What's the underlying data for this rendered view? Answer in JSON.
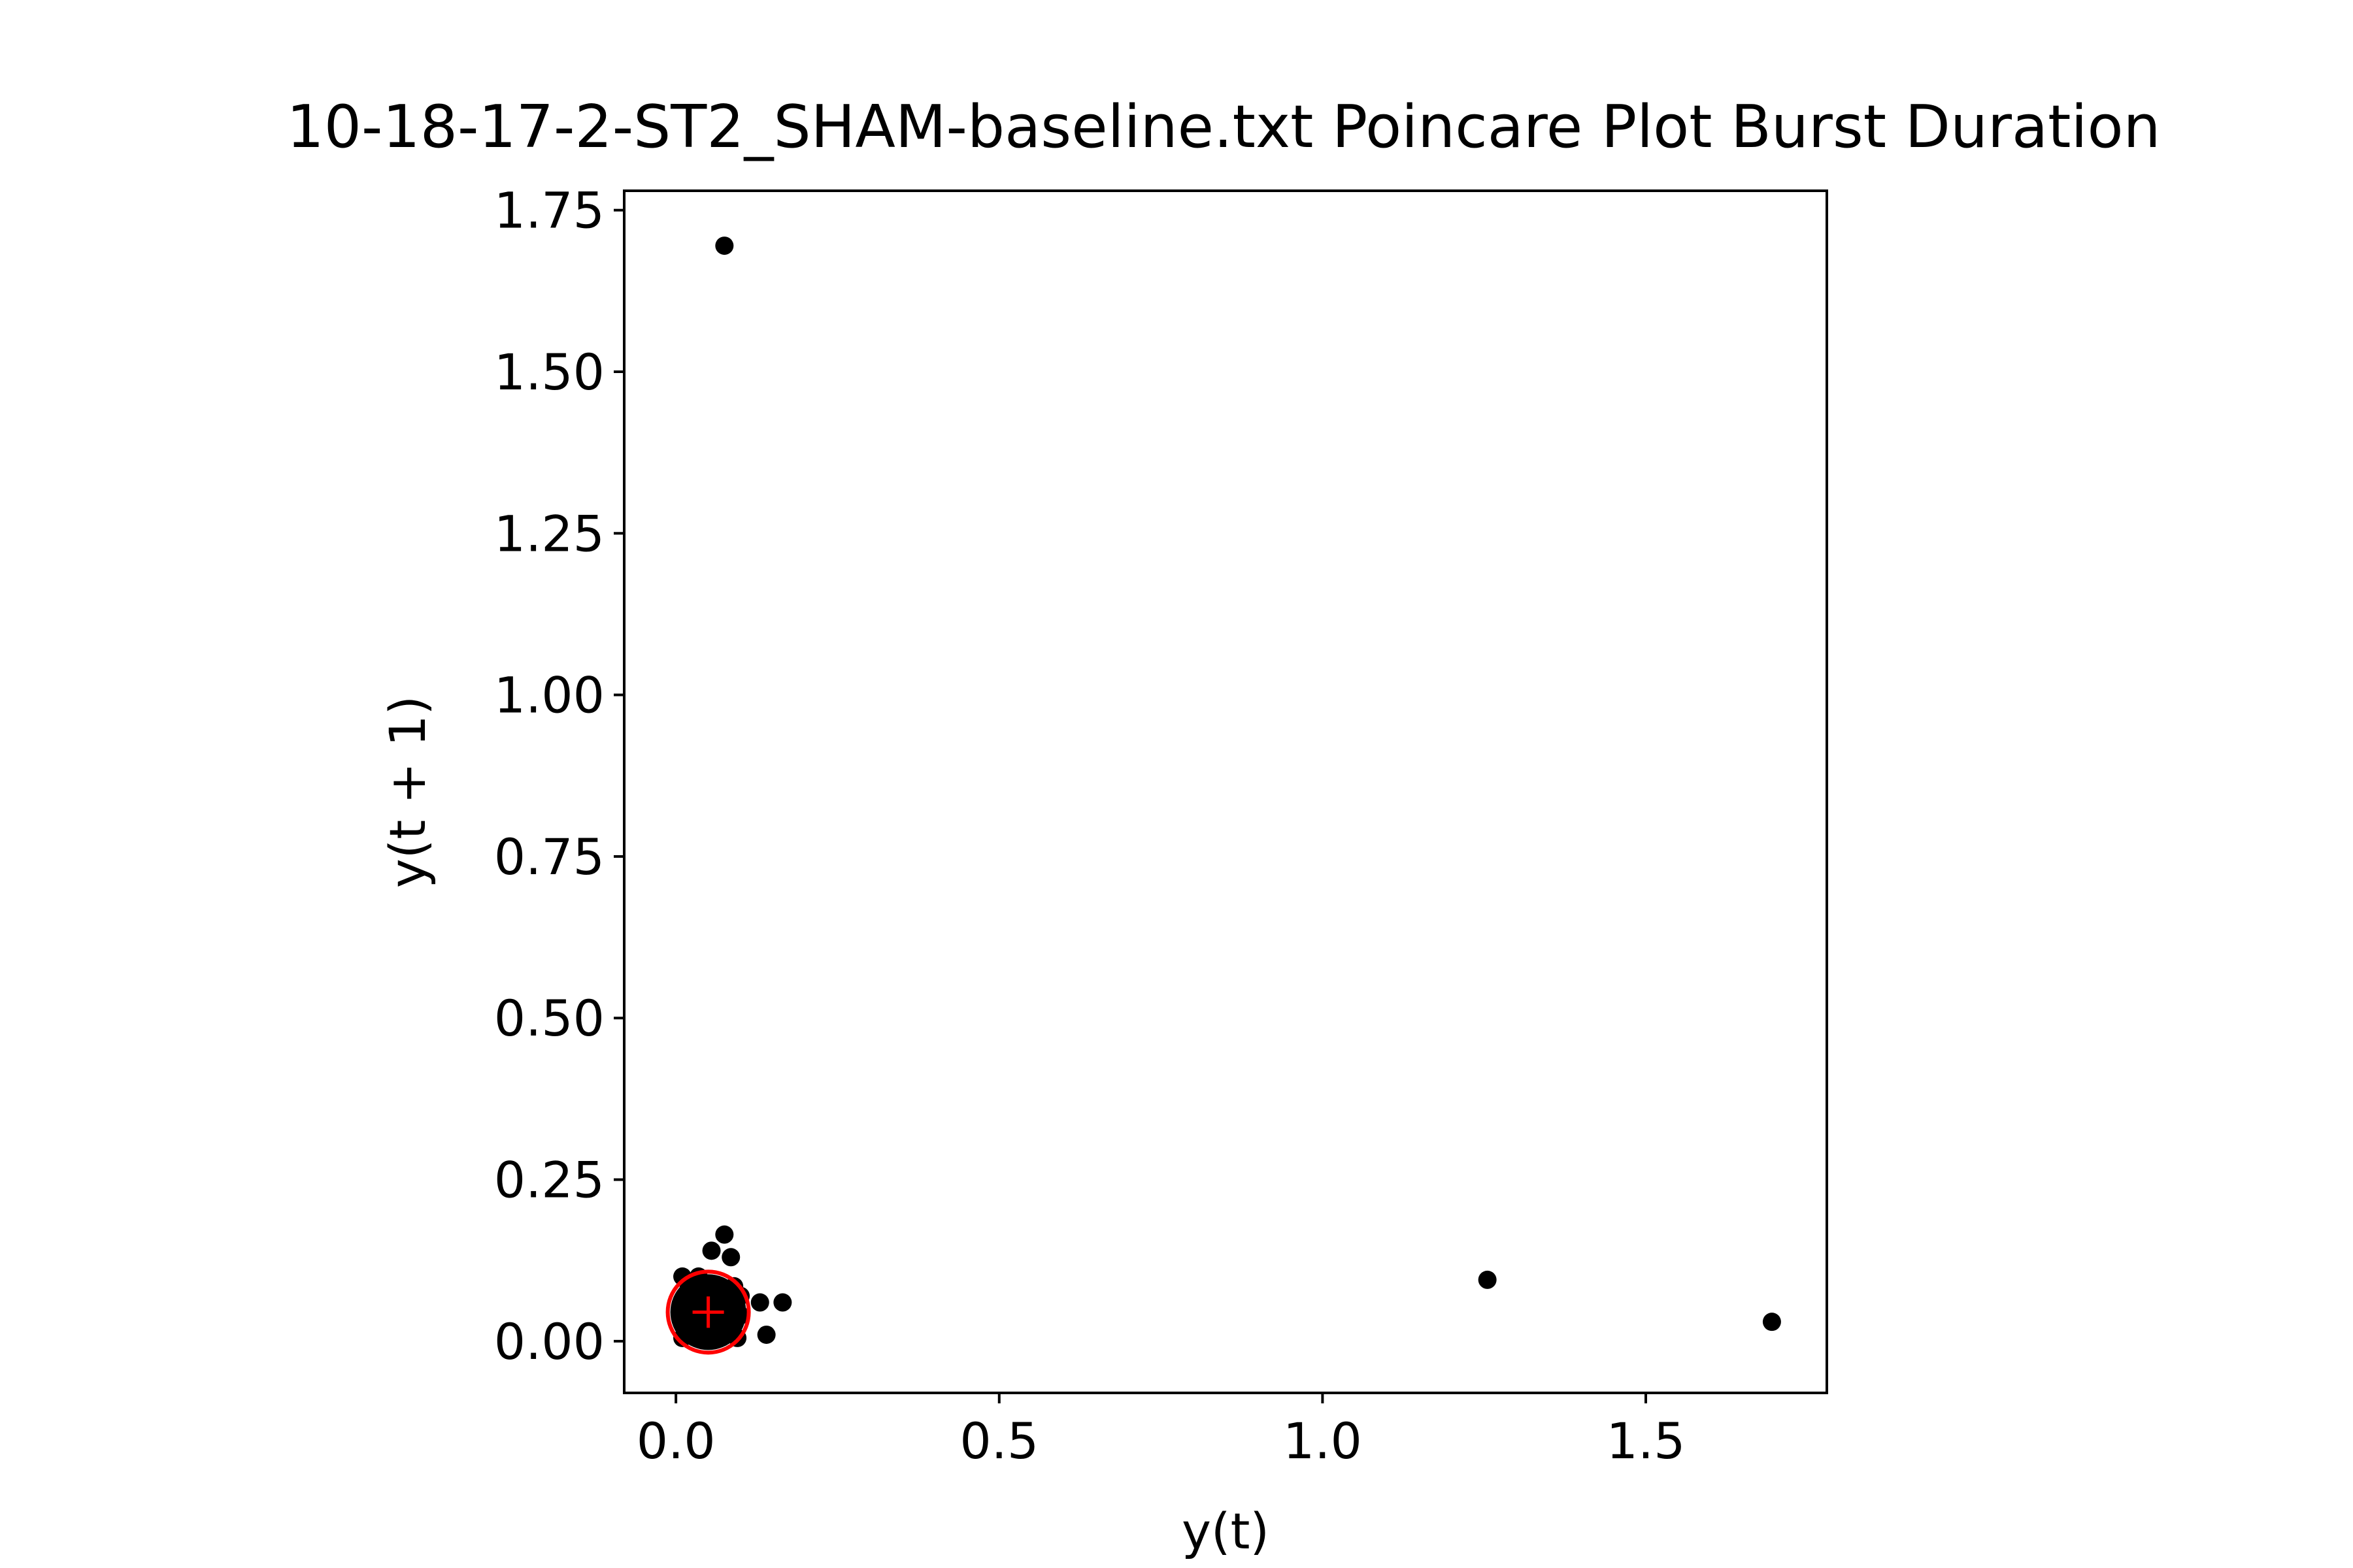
{
  "chart_data": {
    "type": "scatter",
    "title": "10-18-17-2-ST2_SHAM-baseline.txt Poincare Plot Burst Duration",
    "xlabel": "y(t)",
    "ylabel": "y(t + 1)",
    "xlim": [
      -0.08,
      1.78
    ],
    "ylim": [
      -0.08,
      1.78
    ],
    "x_ticks": [
      0.0,
      0.5,
      1.0,
      1.5
    ],
    "x_tick_labels": [
      "0.0",
      "0.5",
      "1.0",
      "1.5"
    ],
    "y_ticks": [
      0.0,
      0.25,
      0.5,
      0.75,
      1.0,
      1.25,
      1.5,
      1.75
    ],
    "y_tick_labels": [
      "0.00",
      "0.25",
      "0.50",
      "0.75",
      "1.00",
      "1.25",
      "1.50",
      "1.75"
    ],
    "grid": false,
    "point_color": "#000000",
    "marker_color": "#ff0000",
    "points": [
      {
        "x": 0.075,
        "y": 1.695
      },
      {
        "x": 1.255,
        "y": 0.095
      },
      {
        "x": 1.695,
        "y": 0.03
      },
      {
        "x": 0.075,
        "y": 0.165
      },
      {
        "x": 0.055,
        "y": 0.14
      },
      {
        "x": 0.085,
        "y": 0.13
      },
      {
        "x": 0.13,
        "y": 0.06
      },
      {
        "x": 0.165,
        "y": 0.06
      },
      {
        "x": 0.14,
        "y": 0.01
      },
      {
        "x": 0.01,
        "y": 0.1
      },
      {
        "x": 0.02,
        "y": 0.085
      },
      {
        "x": 0.035,
        "y": 0.1
      },
      {
        "x": 0.09,
        "y": 0.085
      },
      {
        "x": 0.1,
        "y": 0.07
      },
      {
        "x": 0.1,
        "y": 0.04
      },
      {
        "x": 0.095,
        "y": 0.005
      },
      {
        "x": 0.01,
        "y": 0.005
      },
      {
        "x": 0.01,
        "y": 0.045
      },
      {
        "x": 0.015,
        "y": 0.065
      },
      {
        "x": 0.02,
        "y": 0.02
      },
      {
        "x": 0.03,
        "y": 0.03
      },
      {
        "x": 0.03,
        "y": 0.06
      },
      {
        "x": 0.04,
        "y": 0.045
      },
      {
        "x": 0.05,
        "y": 0.025
      },
      {
        "x": 0.05,
        "y": 0.065
      },
      {
        "x": 0.06,
        "y": 0.04
      },
      {
        "x": 0.065,
        "y": 0.02
      },
      {
        "x": 0.07,
        "y": 0.07
      },
      {
        "x": 0.075,
        "y": 0.05
      },
      {
        "x": 0.08,
        "y": 0.03
      },
      {
        "x": 0.04,
        "y": 0.08
      },
      {
        "x": 0.06,
        "y": 0.085
      },
      {
        "x": 0.085,
        "y": 0.06
      },
      {
        "x": 0.025,
        "y": 0.04
      },
      {
        "x": 0.045,
        "y": 0.01
      }
    ],
    "mean_marker": {
      "x": 0.05,
      "y": 0.045
    }
  }
}
